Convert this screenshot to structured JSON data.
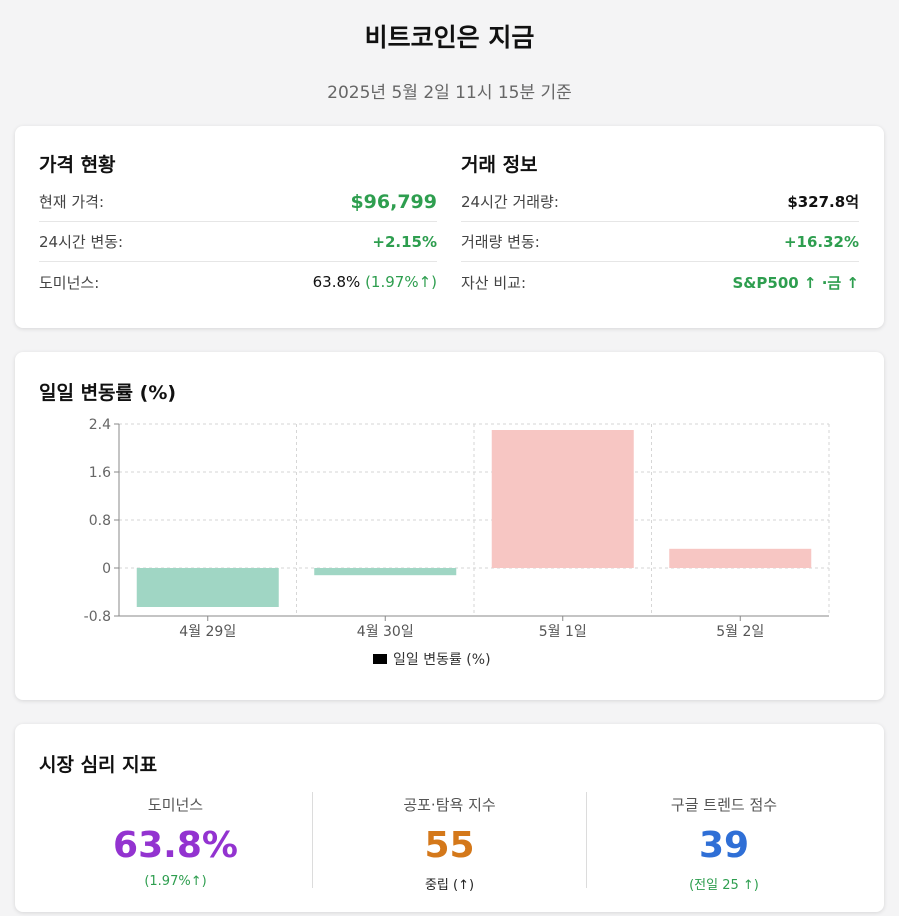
{
  "header": {
    "title": "비트코인은 지금",
    "subtitle": "2025년 5월 2일 11시 15분 기준"
  },
  "price": {
    "title": "가격 현황",
    "rows": [
      {
        "label": "현재 가격:",
        "value": "$96,799"
      },
      {
        "label": "24시간 변동:",
        "value": "+2.15%"
      },
      {
        "label": "도미넌스:",
        "value": "63.8%",
        "sub": "(1.97%↑)"
      }
    ]
  },
  "trade": {
    "title": "거래 정보",
    "rows": [
      {
        "label": "24시간 거래량:",
        "value": "$327.8억"
      },
      {
        "label": "거래량 변동:",
        "value": "+16.32%"
      },
      {
        "label": "자산 비교:",
        "value": "S&P500 ↑ ·금 ↑"
      }
    ]
  },
  "chart": {
    "title": "일일 변동률 (%)"
  },
  "chart_data": {
    "type": "bar",
    "categories": [
      "4월 29일",
      "4월 30일",
      "5월 1일",
      "5월 2일"
    ],
    "values": [
      -0.65,
      -0.12,
      2.3,
      0.32
    ],
    "series": [
      {
        "name": "일일 변동률 (%)",
        "values": [
          -0.65,
          -0.12,
          2.3,
          0.32
        ]
      }
    ],
    "yticks": [
      2.4,
      1.6,
      0.8,
      0,
      -0.8
    ],
    "ylim": [
      -0.8,
      2.4
    ],
    "grid": true,
    "legend": "bottom",
    "colors": {
      "negative": "#a0d6c4",
      "positive": "#f7c6c3",
      "legend_swatch": "#000000"
    }
  },
  "sentiment": {
    "title": "시장 심리 지표",
    "items": [
      {
        "label": "도미넌스",
        "value": "63.8%",
        "sub": "(1.97%↑)",
        "color": "#9333d0",
        "sub_color": "#2e9e4f"
      },
      {
        "label": "공포·탐욕 지수",
        "value": "55",
        "sub": "중립 (↑)",
        "color": "#d4781a",
        "sub_color": "#222222"
      },
      {
        "label": "구글 트렌드 점수",
        "value": "39",
        "sub": "(전일 25 ↑)",
        "color": "#2f6fd6",
        "sub_color": "#2e9e4f"
      }
    ]
  }
}
